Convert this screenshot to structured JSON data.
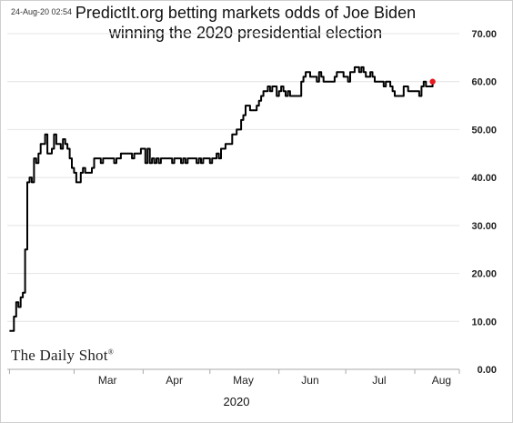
{
  "timestamp": "24-Aug-20 02:54",
  "title_line1": "PredictIt.org betting markets odds of Joe Biden",
  "title_line2": "winning the 2020 presidential election",
  "watermark": "The Daily Shot",
  "watermark_mark": "®",
  "xlabel": "2020",
  "colors": {
    "line": "#000000",
    "last_point": "#e8191f",
    "grid": "#e4e4e4",
    "axis": "#aaaaaa"
  },
  "chart_data": {
    "type": "line",
    "title": "PredictIt.org betting markets odds of Joe Biden winning the 2020 presidential election",
    "xlabel": "2020",
    "ylabel": "",
    "ylim": [
      0,
      70
    ],
    "y_ticks": [
      "0.00",
      "10.00",
      "20.00",
      "30.00",
      "40.00",
      "50.00",
      "60.00",
      "70.00"
    ],
    "y_axis_position": "right",
    "grid": "horizontal",
    "x_month_labels": [
      "Mar",
      "Apr",
      "May",
      "Jun",
      "Jul",
      "Aug"
    ],
    "series": [
      {
        "highlight_last_point": true,
        "points": [
          [
            "2020-02-01",
            8
          ],
          [
            "2020-02-02",
            8
          ],
          [
            "2020-02-03",
            11
          ],
          [
            "2020-02-04",
            14
          ],
          [
            "2020-02-05",
            13
          ],
          [
            "2020-02-06",
            15
          ],
          [
            "2020-02-07",
            16
          ],
          [
            "2020-02-08",
            25
          ],
          [
            "2020-02-09",
            39
          ],
          [
            "2020-02-10",
            40
          ],
          [
            "2020-02-11",
            39
          ],
          [
            "2020-02-12",
            44
          ],
          [
            "2020-02-13",
            43
          ],
          [
            "2020-02-14",
            45
          ],
          [
            "2020-02-15",
            47
          ],
          [
            "2020-02-16",
            47
          ],
          [
            "2020-02-17",
            49
          ],
          [
            "2020-02-18",
            45
          ],
          [
            "2020-02-19",
            45
          ],
          [
            "2020-02-20",
            46
          ],
          [
            "2020-02-21",
            49
          ],
          [
            "2020-02-22",
            47
          ],
          [
            "2020-02-23",
            47
          ],
          [
            "2020-02-24",
            46
          ],
          [
            "2020-02-25",
            48
          ],
          [
            "2020-02-26",
            47
          ],
          [
            "2020-02-27",
            46
          ],
          [
            "2020-02-28",
            44
          ],
          [
            "2020-02-29",
            42
          ],
          [
            "2020-03-01",
            41
          ],
          [
            "2020-03-02",
            39
          ],
          [
            "2020-03-03",
            39
          ],
          [
            "2020-03-04",
            41
          ],
          [
            "2020-03-05",
            42
          ],
          [
            "2020-03-06",
            41
          ],
          [
            "2020-03-07",
            41
          ],
          [
            "2020-03-08",
            41
          ],
          [
            "2020-03-09",
            42
          ],
          [
            "2020-03-10",
            44
          ],
          [
            "2020-03-11",
            44
          ],
          [
            "2020-03-12",
            44
          ],
          [
            "2020-03-13",
            43
          ],
          [
            "2020-03-14",
            44
          ],
          [
            "2020-03-15",
            44
          ],
          [
            "2020-03-16",
            44
          ],
          [
            "2020-03-17",
            44
          ],
          [
            "2020-03-18",
            44
          ],
          [
            "2020-03-19",
            43
          ],
          [
            "2020-03-20",
            44
          ],
          [
            "2020-03-21",
            44
          ],
          [
            "2020-03-22",
            45
          ],
          [
            "2020-03-23",
            45
          ],
          [
            "2020-03-24",
            45
          ],
          [
            "2020-03-25",
            45
          ],
          [
            "2020-03-26",
            45
          ],
          [
            "2020-03-27",
            44
          ],
          [
            "2020-03-28",
            45
          ],
          [
            "2020-03-29",
            45
          ],
          [
            "2020-03-30",
            45
          ],
          [
            "2020-03-31",
            46
          ],
          [
            "2020-04-01",
            46
          ],
          [
            "2020-04-02",
            43
          ],
          [
            "2020-04-03",
            46
          ],
          [
            "2020-04-04",
            43
          ],
          [
            "2020-04-05",
            44
          ],
          [
            "2020-04-06",
            43
          ],
          [
            "2020-04-07",
            44
          ],
          [
            "2020-04-08",
            43
          ],
          [
            "2020-04-09",
            44
          ],
          [
            "2020-04-10",
            44
          ],
          [
            "2020-04-11",
            44
          ],
          [
            "2020-04-12",
            44
          ],
          [
            "2020-04-13",
            44
          ],
          [
            "2020-04-14",
            43
          ],
          [
            "2020-04-15",
            44
          ],
          [
            "2020-04-16",
            44
          ],
          [
            "2020-04-17",
            44
          ],
          [
            "2020-04-18",
            43
          ],
          [
            "2020-04-19",
            44
          ],
          [
            "2020-04-20",
            43
          ],
          [
            "2020-04-21",
            44
          ],
          [
            "2020-04-22",
            44
          ],
          [
            "2020-04-23",
            44
          ],
          [
            "2020-04-24",
            44
          ],
          [
            "2020-04-25",
            43
          ],
          [
            "2020-04-26",
            44
          ],
          [
            "2020-04-27",
            43
          ],
          [
            "2020-04-28",
            44
          ],
          [
            "2020-04-29",
            44
          ],
          [
            "2020-04-30",
            44
          ],
          [
            "2020-05-01",
            43
          ],
          [
            "2020-05-02",
            44
          ],
          [
            "2020-05-03",
            44
          ],
          [
            "2020-05-04",
            45
          ],
          [
            "2020-05-05",
            44
          ],
          [
            "2020-05-06",
            46
          ],
          [
            "2020-05-07",
            46
          ],
          [
            "2020-05-08",
            47
          ],
          [
            "2020-05-09",
            47
          ],
          [
            "2020-05-10",
            47
          ],
          [
            "2020-05-11",
            49
          ],
          [
            "2020-05-12",
            49
          ],
          [
            "2020-05-13",
            50
          ],
          [
            "2020-05-14",
            50
          ],
          [
            "2020-05-15",
            52
          ],
          [
            "2020-05-16",
            53
          ],
          [
            "2020-05-17",
            55
          ],
          [
            "2020-05-18",
            55
          ],
          [
            "2020-05-19",
            54
          ],
          [
            "2020-05-20",
            54
          ],
          [
            "2020-05-21",
            54
          ],
          [
            "2020-05-22",
            55
          ],
          [
            "2020-05-23",
            56
          ],
          [
            "2020-05-24",
            57
          ],
          [
            "2020-05-25",
            58
          ],
          [
            "2020-05-26",
            58
          ],
          [
            "2020-05-27",
            59
          ],
          [
            "2020-05-28",
            58
          ],
          [
            "2020-05-29",
            59
          ],
          [
            "2020-05-30",
            59
          ],
          [
            "2020-05-31",
            57
          ],
          [
            "2020-06-01",
            58
          ],
          [
            "2020-06-02",
            59
          ],
          [
            "2020-06-03",
            58
          ],
          [
            "2020-06-04",
            57
          ],
          [
            "2020-06-05",
            58
          ],
          [
            "2020-06-06",
            57
          ],
          [
            "2020-06-07",
            57
          ],
          [
            "2020-06-08",
            57
          ],
          [
            "2020-06-09",
            57
          ],
          [
            "2020-06-10",
            57
          ],
          [
            "2020-06-11",
            60
          ],
          [
            "2020-06-12",
            61
          ],
          [
            "2020-06-13",
            62
          ],
          [
            "2020-06-14",
            62
          ],
          [
            "2020-06-15",
            61
          ],
          [
            "2020-06-16",
            61
          ],
          [
            "2020-06-17",
            61
          ],
          [
            "2020-06-18",
            60
          ],
          [
            "2020-06-19",
            62
          ],
          [
            "2020-06-20",
            61
          ],
          [
            "2020-06-21",
            60
          ],
          [
            "2020-06-22",
            60
          ],
          [
            "2020-06-23",
            60
          ],
          [
            "2020-06-24",
            60
          ],
          [
            "2020-06-25",
            60
          ],
          [
            "2020-06-26",
            61
          ],
          [
            "2020-06-27",
            62
          ],
          [
            "2020-06-28",
            62
          ],
          [
            "2020-06-29",
            62
          ],
          [
            "2020-06-30",
            61
          ],
          [
            "2020-07-01",
            61
          ],
          [
            "2020-07-02",
            60
          ],
          [
            "2020-07-03",
            62
          ],
          [
            "2020-07-04",
            62
          ],
          [
            "2020-07-05",
            63
          ],
          [
            "2020-07-06",
            63
          ],
          [
            "2020-07-07",
            62
          ],
          [
            "2020-07-08",
            63
          ],
          [
            "2020-07-09",
            62
          ],
          [
            "2020-07-10",
            61
          ],
          [
            "2020-07-11",
            61
          ],
          [
            "2020-07-12",
            62
          ],
          [
            "2020-07-13",
            61
          ],
          [
            "2020-07-14",
            60
          ],
          [
            "2020-07-15",
            60
          ],
          [
            "2020-07-16",
            60
          ],
          [
            "2020-07-17",
            60
          ],
          [
            "2020-07-18",
            59
          ],
          [
            "2020-07-19",
            60
          ],
          [
            "2020-07-20",
            60
          ],
          [
            "2020-07-21",
            59
          ],
          [
            "2020-07-22",
            58
          ],
          [
            "2020-07-23",
            57
          ],
          [
            "2020-07-24",
            57
          ],
          [
            "2020-07-25",
            57
          ],
          [
            "2020-07-26",
            57
          ],
          [
            "2020-07-27",
            59
          ],
          [
            "2020-07-28",
            59
          ],
          [
            "2020-07-29",
            58
          ],
          [
            "2020-07-30",
            58
          ],
          [
            "2020-07-31",
            58
          ],
          [
            "2020-08-01",
            58
          ],
          [
            "2020-08-02",
            58
          ],
          [
            "2020-08-03",
            57
          ],
          [
            "2020-08-04",
            59
          ],
          [
            "2020-08-05",
            60
          ],
          [
            "2020-08-06",
            59
          ],
          [
            "2020-08-07",
            59
          ],
          [
            "2020-08-08",
            59
          ],
          [
            "2020-08-09",
            60
          ]
        ]
      }
    ]
  }
}
